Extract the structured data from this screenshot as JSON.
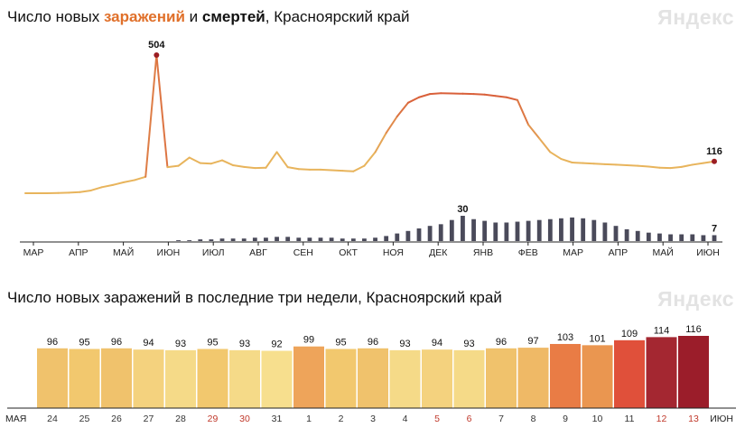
{
  "top_chart": {
    "title_parts": [
      "Число новых ",
      "заражений",
      " и ",
      "смертей",
      ", Красноярский край"
    ],
    "logo": "Яндекс",
    "colors": {
      "infections_low": "#e8b45c",
      "infections_high": "#d9603a",
      "peak": "#9b1d22",
      "deaths": "#4a4a5a",
      "axis": "#222222"
    }
  },
  "bottom_chart": {
    "title": "Число новых заражений в последние три недели, Красноярский край",
    "logo": "Яндекс",
    "colors": {
      "weekday": "#333333",
      "weekend": "#c0392b"
    }
  },
  "chart_data": [
    {
      "type": "line",
      "title": "Число новых заражений и смертей, Красноярский край",
      "x_labels": [
        "МАР",
        "АПР",
        "МАЙ",
        "ИЮН",
        "ИЮЛ",
        "АВГ",
        "СЕН",
        "ОКТ",
        "НОЯ",
        "ДЕК",
        "ЯНВ",
        "ФЕВ",
        "МАР",
        "АПР",
        "МАЙ",
        "ИЮН"
      ],
      "series": [
        {
          "name": "заражений",
          "values": [
            0,
            0,
            0,
            1,
            2,
            4,
            10,
            22,
            30,
            40,
            48,
            60,
            504,
            95,
            100,
            130,
            110,
            108,
            120,
            102,
            96,
            92,
            93,
            150,
            95,
            88,
            86,
            86,
            84,
            82,
            80,
            100,
            150,
            220,
            280,
            330,
            350,
            362,
            365,
            364,
            363,
            362,
            360,
            355,
            350,
            340,
            250,
            200,
            150,
            125,
            112,
            110,
            108,
            106,
            104,
            102,
            100,
            97,
            93,
            92,
            96,
            104,
            110,
            116
          ],
          "annotations": [
            {
              "index": 12,
              "label": "504"
            },
            {
              "index": 63,
              "label": "116"
            }
          ]
        },
        {
          "name": "смертей",
          "values": [
            0,
            0,
            0,
            0,
            0,
            0,
            0,
            0,
            0,
            0,
            0,
            0,
            0,
            0,
            1,
            1,
            2,
            2,
            3,
            3,
            3,
            4,
            4,
            5,
            5,
            4,
            4,
            4,
            4,
            3,
            3,
            3,
            4,
            6,
            9,
            12,
            15,
            18,
            20,
            25,
            30,
            26,
            24,
            22,
            22,
            23,
            24,
            25,
            26,
            27,
            28,
            27,
            25,
            22,
            18,
            14,
            12,
            10,
            9,
            8,
            8,
            8,
            7,
            7
          ],
          "annotations": [
            {
              "index": 40,
              "label": "30"
            },
            {
              "index": 63,
              "label": "7"
            }
          ]
        }
      ]
    },
    {
      "type": "bar",
      "title": "Число новых заражений в последние три недели, Красноярский край",
      "month_start_label": "МАЯ",
      "month_end_label": "ИЮН",
      "categories": [
        "24",
        "25",
        "26",
        "27",
        "28",
        "29",
        "30",
        "31",
        "1",
        "2",
        "3",
        "4",
        "5",
        "6",
        "7",
        "8",
        "9",
        "10",
        "11",
        "12",
        "13"
      ],
      "weekend": [
        false,
        false,
        false,
        false,
        false,
        true,
        true,
        false,
        false,
        false,
        false,
        false,
        true,
        true,
        false,
        false,
        false,
        false,
        false,
        true,
        true
      ],
      "values": [
        96,
        95,
        96,
        94,
        93,
        95,
        93,
        92,
        99,
        95,
        96,
        93,
        94,
        93,
        96,
        97,
        103,
        101,
        109,
        114,
        116
      ],
      "ylim": [
        0,
        125
      ]
    }
  ]
}
